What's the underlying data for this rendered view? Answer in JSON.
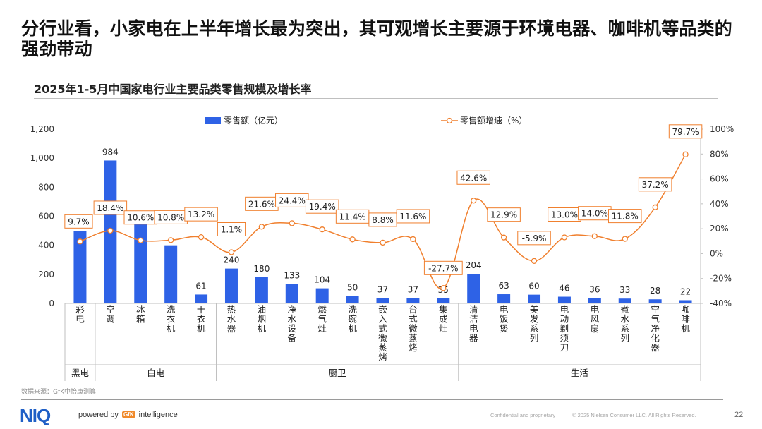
{
  "headline": "分行业看，小家电在上半年增长最为突出，其可观增长主要源于环境电器、咖啡机等品类的强劲带动",
  "chart_data": {
    "type": "bar",
    "title": "2025年1-5月中国家电行业主要品类零售规模及增长率",
    "categories": [
      "彩电",
      "空调",
      "冰箱",
      "洗衣机",
      "干衣机",
      "热水器",
      "油烟机",
      "净水设备",
      "燃气灶",
      "洗碗机",
      "嵌入式微蒸烤",
      "台式微蒸烤",
      "集成灶",
      "清洁电器",
      "电饭煲",
      "美发系列",
      "电动剃须刀",
      "电风扇",
      "煮水系列",
      "空气净化器",
      "咖啡机"
    ],
    "series": [
      {
        "name": "零售额（亿元）",
        "type": "bar",
        "axis": "left",
        "values": [
          499,
          984,
          null,
          400,
          61,
          240,
          180,
          133,
          104,
          50,
          37,
          37,
          35,
          204,
          63,
          60,
          46,
          36,
          33,
          28,
          22
        ],
        "labels": [
          "499",
          "984",
          "",
          "",
          "61",
          "240",
          "180",
          "133",
          "104",
          "50",
          "37",
          "37",
          "35",
          "204",
          "63",
          "60",
          "46",
          "36",
          "33",
          "28",
          "22"
        ]
      },
      {
        "name": "零售额增速（%）",
        "type": "line",
        "axis": "right",
        "values": [
          9.7,
          18.4,
          10.6,
          10.8,
          13.2,
          1.1,
          21.6,
          24.4,
          19.4,
          11.4,
          8.8,
          11.6,
          -27.7,
          42.6,
          12.9,
          -5.9,
          13.0,
          14.0,
          11.8,
          37.2,
          79.7
        ],
        "labels": [
          "9.7%",
          "18.4%",
          "10.6%",
          "10.8%",
          "13.2%",
          "1.1%",
          "21.6%",
          "24.4%",
          "19.4%",
          "11.4%",
          "8.8%",
          "11.6%",
          "-27.7%",
          "42.6%",
          "12.9%",
          "-5.9%",
          "13.0%",
          "14.0%",
          "11.8%",
          "37.2%",
          "79.7%"
        ]
      }
    ],
    "bar_value_unlabeled": {
      "冰箱": 560
    },
    "left_axis": {
      "ticks": [
        "0",
        "200",
        "400",
        "600",
        "800",
        "1,000",
        "1,200"
      ],
      "ylim": [
        0,
        1200
      ]
    },
    "right_axis": {
      "ticks": [
        "-40%",
        "-20%",
        "0%",
        "20%",
        "40%",
        "60%",
        "80%",
        "100%"
      ],
      "ylim": [
        -40,
        100
      ]
    },
    "groups": [
      {
        "name": "黑电",
        "count": 1
      },
      {
        "name": "白电",
        "count": 4
      },
      {
        "name": "厨卫",
        "count": 8
      },
      {
        "name": "生活",
        "count": 8
      }
    ],
    "legend_placement": "top-center",
    "colors": {
      "bar": "#2e62e6",
      "line": "#f07f2d",
      "label_border": "#f07f2d"
    }
  },
  "source": "数据来源：GfK中怡康测算",
  "footer": {
    "logo": "NIQ",
    "powered_pre": "powered by",
    "gfk_badge": "GfK",
    "powered_post": "intelligence",
    "confidential": "Confidential and proprietary",
    "copyright": "© 2025 Nielsen Consumer LLC. All Rights Reserved.",
    "page": "22"
  }
}
